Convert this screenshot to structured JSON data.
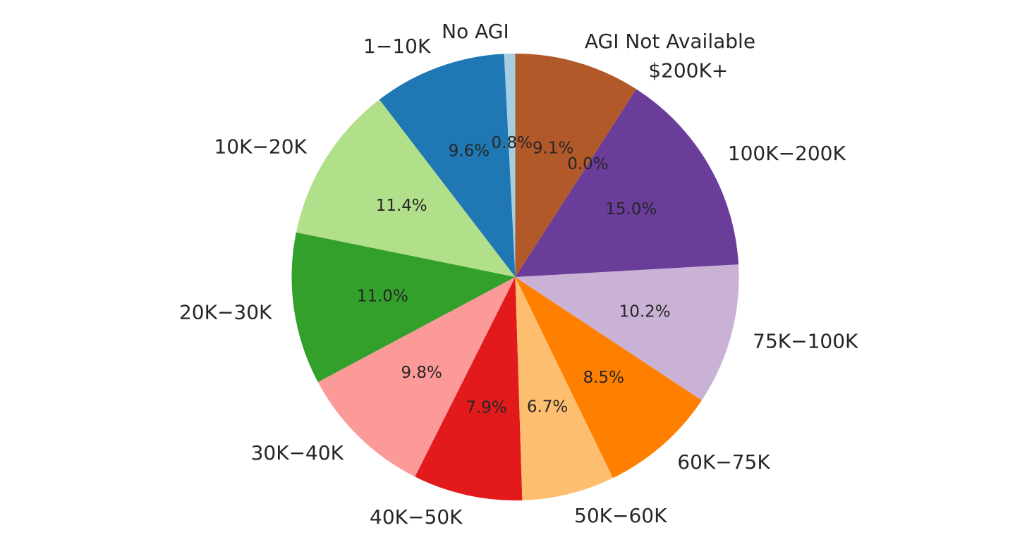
{
  "chart_data": {
    "type": "pie",
    "start_angle_deg": 90,
    "direction": "counterclockwise",
    "slices": [
      {
        "label": "No AGI",
        "value": 0.8,
        "pct_label": "0.8%",
        "color": "#a6cee3"
      },
      {
        "label": "1−10K",
        "value": 9.6,
        "pct_label": "9.6%",
        "color": "#1f78b4"
      },
      {
        "label": "10K−20K",
        "value": 11.4,
        "pct_label": "11.4%",
        "color": "#b2df8a"
      },
      {
        "label": "20K−30K",
        "value": 11.0,
        "pct_label": "11.0%",
        "color": "#33a02c"
      },
      {
        "label": "30K−40K",
        "value": 9.8,
        "pct_label": "9.8%",
        "color": "#fb9a99"
      },
      {
        "label": "40K−50K",
        "value": 7.9,
        "pct_label": "7.9%",
        "color": "#e31a1c"
      },
      {
        "label": "50K−60K",
        "value": 6.7,
        "pct_label": "6.7%",
        "color": "#fdbf6f"
      },
      {
        "label": "60K−75K",
        "value": 8.5,
        "pct_label": "8.5%",
        "color": "#ff7f00"
      },
      {
        "label": "75K−100K",
        "value": 10.2,
        "pct_label": "10.2%",
        "color": "#cab2d6"
      },
      {
        "label": "100K−200K",
        "value": 15.0,
        "pct_label": "15.0%",
        "color": "#6a3d9a"
      },
      {
        "label": "$200K+",
        "value": 0.0,
        "pct_label": "0.0%",
        "color": "#ffff99"
      },
      {
        "label": "AGI Not Available",
        "value": 9.1,
        "pct_label": "9.1%",
        "color": "#b15928"
      }
    ]
  }
}
